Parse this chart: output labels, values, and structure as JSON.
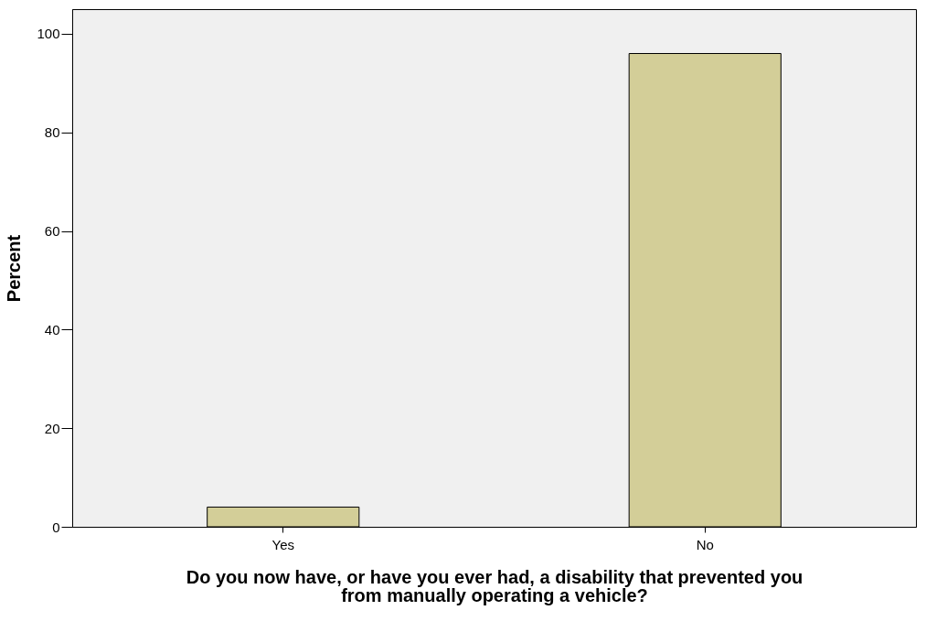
{
  "chart_data": {
    "type": "bar",
    "xlabel": "Do you now have, or have you ever had, a disability that prevented you from manually operating a vehicle?",
    "ylabel": "Percent",
    "categories": [
      "Yes",
      "No"
    ],
    "values": [
      4,
      96
    ],
    "color": "#d3ce98",
    "ylim": [
      0,
      105
    ],
    "yticks": [
      0,
      20,
      40,
      60,
      80,
      100
    ],
    "grid": false
  }
}
